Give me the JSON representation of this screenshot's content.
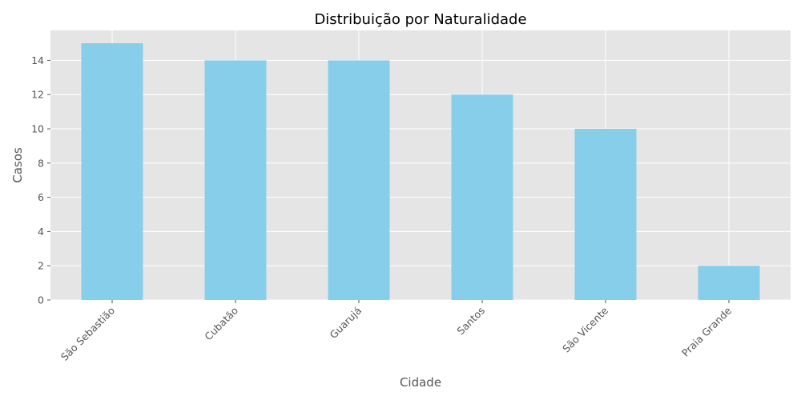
{
  "chart_data": {
    "type": "bar",
    "title": "Distribuição por Naturalidade",
    "xlabel": "Cidade",
    "ylabel": "Casos",
    "categories": [
      "São Sebastião",
      "Cubatão",
      "Guarujá",
      "Santos",
      "São Vicente",
      "Praia Grande"
    ],
    "values": [
      15,
      14,
      14,
      12,
      10,
      2
    ],
    "ylim": [
      0,
      15.75
    ],
    "yticks": [
      0,
      2,
      4,
      6,
      8,
      10,
      12,
      14
    ],
    "grid": true,
    "colors": {
      "bar": "#87CEEB",
      "background": "#E5E5E5",
      "grid": "#FFFFFF",
      "text": "#555555"
    }
  }
}
